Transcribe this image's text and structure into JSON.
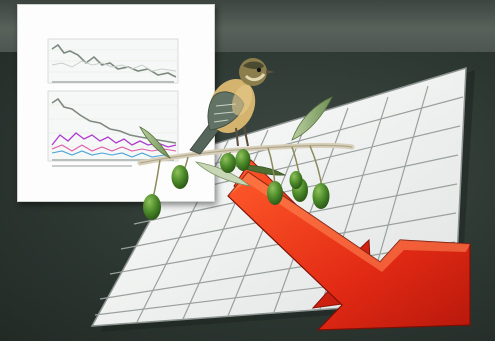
{
  "image": {
    "subject": "bird-perched-on-olive-branch-over-declining-chart",
    "elements": [
      "thumbnail-line-charts",
      "grid-sheet",
      "red-down-arrow",
      "olive-branch",
      "green-olives",
      "perched-bird"
    ],
    "colors": {
      "background": "#2b3530",
      "grid_sheet": "#f2f3f1",
      "arrow": "#e8321a",
      "olive": "#3f7a22",
      "bird_breast": "#d2b06a",
      "bird_wing": "#5a6a5a"
    }
  }
}
